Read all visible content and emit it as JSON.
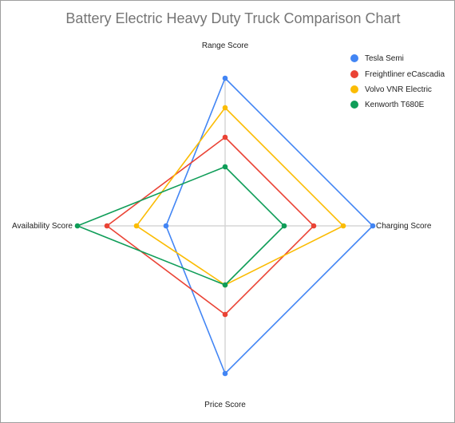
{
  "chart_data": {
    "type": "radar",
    "title": "Battery Electric Heavy Duty Truck Comparison Chart",
    "axes": [
      "Range Score",
      "Charging Score",
      "Price Score",
      "Availability Score"
    ],
    "range": [
      0,
      5
    ],
    "grid": false,
    "legend_position": "top-right",
    "series": [
      {
        "name": "Tesla Semi",
        "color": "#4285f4",
        "values": [
          5,
          5,
          5,
          2
        ]
      },
      {
        "name": "Freightliner eCascadia",
        "color": "#ea4335",
        "values": [
          3,
          3,
          3,
          4
        ]
      },
      {
        "name": "Volvo VNR Electric",
        "color": "#fbbc04",
        "values": [
          4,
          4,
          2,
          3
        ]
      },
      {
        "name": "Kenworth T680E",
        "color": "#0f9d58",
        "values": [
          2,
          2,
          2,
          5
        ]
      }
    ]
  }
}
